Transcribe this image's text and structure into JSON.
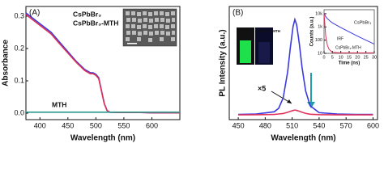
{
  "chart_data": [
    {
      "type": "line",
      "panel_label": "(A)",
      "xlabel": "Wavelength (nm)",
      "ylabel": "Absorbance",
      "x": [
        375,
        390,
        405,
        420,
        435,
        450,
        465,
        480,
        490,
        495,
        500,
        505,
        510,
        515,
        520,
        525,
        540,
        560,
        580,
        600,
        620,
        640,
        650
      ],
      "series": [
        {
          "name": "CsPbBr₃",
          "color": "#3a3adf",
          "values": [
            0.31,
            0.29,
            0.27,
            0.25,
            0.22,
            0.19,
            0.16,
            0.135,
            0.125,
            0.125,
            0.12,
            0.11,
            0.07,
            0.03,
            0.008,
            0.003,
            0.002,
            0.002,
            0.002,
            0.001,
            0.001,
            0.001,
            0.001
          ]
        },
        {
          "name": "CsPbBr₃-MTH",
          "color": "#e0315a",
          "values": [
            0.305,
            0.285,
            0.265,
            0.245,
            0.215,
            0.186,
            0.157,
            0.132,
            0.122,
            0.122,
            0.117,
            0.107,
            0.068,
            0.029,
            0.008,
            0.003,
            0.002,
            0.002,
            0.002,
            0.001,
            0.001,
            0.001,
            0.001
          ]
        },
        {
          "name": "MTH",
          "color": "#2a9a8e",
          "values": [
            0.003,
            0.003,
            0.003,
            0.003,
            0.003,
            0.003,
            0.003,
            0.003,
            0.003,
            0.003,
            0.003,
            0.003,
            0.003,
            0.003,
            0.003,
            0.003,
            0.003,
            0.003,
            0.003,
            0.003,
            0.003,
            0.003,
            0.003
          ]
        }
      ],
      "xlim": [
        375,
        650
      ],
      "xticks": [
        400,
        450,
        500,
        550,
        600
      ],
      "ylim": [
        -0.02,
        0.33
      ],
      "yticks": [
        {
          "value": 0,
          "label": "0.0"
        },
        0.1,
        0.2,
        0.3
      ],
      "legend": "upper left"
    },
    {
      "type": "line",
      "panel_label": "(B)",
      "xlabel": "Wavelength (nm)",
      "ylabel": "PL Intensity (a.u.)",
      "annotations": [
        "×5",
        "CsPbBr₃",
        "CsPbBr₃-MTH"
      ],
      "x": [
        450,
        470,
        490,
        495,
        500,
        505,
        508,
        511,
        513,
        515,
        518,
        521,
        525,
        530,
        540,
        560,
        580,
        600
      ],
      "series": [
        {
          "name": "CsPbBr₃",
          "color": "#3a3adf",
          "values": [
            1,
            1.5,
            4,
            8,
            20,
            50,
            78,
            102,
            110,
            104,
            82,
            55,
            28,
            11,
            3,
            1.5,
            1,
            1
          ]
        },
        {
          "name": "CsPbBr₃-MTH",
          "color": "#e0315a",
          "values": [
            0.5,
            0.6,
            1,
            1.5,
            2,
            3.5,
            4.5,
            5.5,
            6,
            5.6,
            4.6,
            3.5,
            2.2,
            1.2,
            0.7,
            0.5,
            0.5,
            0.5
          ]
        }
      ],
      "xlim": [
        440,
        605
      ],
      "xticks": [
        450,
        480,
        510,
        540,
        570,
        600
      ],
      "ylim": [
        -5,
        125
      ]
    },
    {
      "type": "line",
      "xlabel": "Time (ns)",
      "ylabel": "Counts (a.u.)",
      "annotations": [
        "IRF"
      ],
      "x": [
        0,
        0.5,
        1,
        2,
        3,
        5,
        10,
        15,
        20,
        25,
        30
      ],
      "series": [
        {
          "name": "CsPbBr₃",
          "color": "#3a3adf",
          "values": [
            10000,
            8000,
            6000,
            4200,
            3200,
            2000,
            900,
            420,
            200,
            100,
            50
          ]
        },
        {
          "name": "CsPbBr₃-MTH",
          "color": "#e0315a",
          "values": [
            10000,
            1500,
            200,
            40,
            20,
            12,
            11,
            11,
            11,
            11,
            11
          ]
        }
      ],
      "xlim": [
        0,
        30
      ],
      "xticks": [
        0,
        5,
        10,
        15,
        20,
        25,
        30
      ],
      "ylim": [
        10,
        20000
      ],
      "yticks": [
        10,
        100,
        {
          "value": 1000,
          "label": "1k"
        },
        {
          "value": 10000,
          "label": "10k"
        }
      ],
      "log_y": true
    }
  ]
}
